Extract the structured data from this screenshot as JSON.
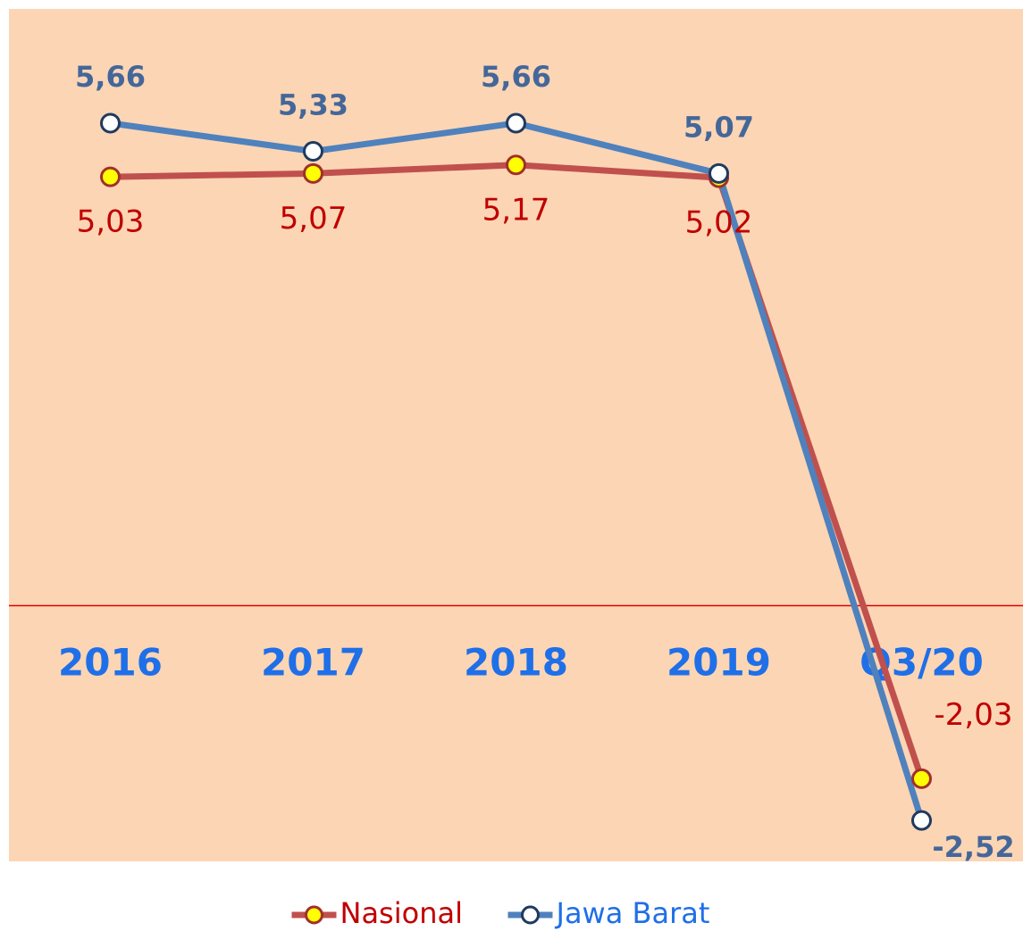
{
  "chart_data": {
    "type": "line",
    "categories": [
      "2016",
      "2017",
      "2018",
      "2019",
      "Q3/20"
    ],
    "series": [
      {
        "name": "Nasional",
        "color": "#c0504d",
        "marker_color": "#ffff00",
        "label_color": "#c00000",
        "values": [
          5.03,
          5.07,
          5.17,
          5.02,
          -2.03
        ],
        "value_labels": [
          "5,03",
          "5,07",
          "5,17",
          "5,02",
          "-2,03"
        ]
      },
      {
        "name": "Jawa Barat",
        "color": "#4f81bd",
        "marker_color": "#ffffff",
        "label_color": "#44679a",
        "values": [
          5.66,
          5.33,
          5.66,
          5.07,
          -2.52
        ],
        "value_labels": [
          "5,66",
          "5,33",
          "5,66",
          "5,07",
          "-2,52"
        ]
      }
    ],
    "ylim": [
      -3,
      7
    ],
    "legend": "bottom"
  }
}
